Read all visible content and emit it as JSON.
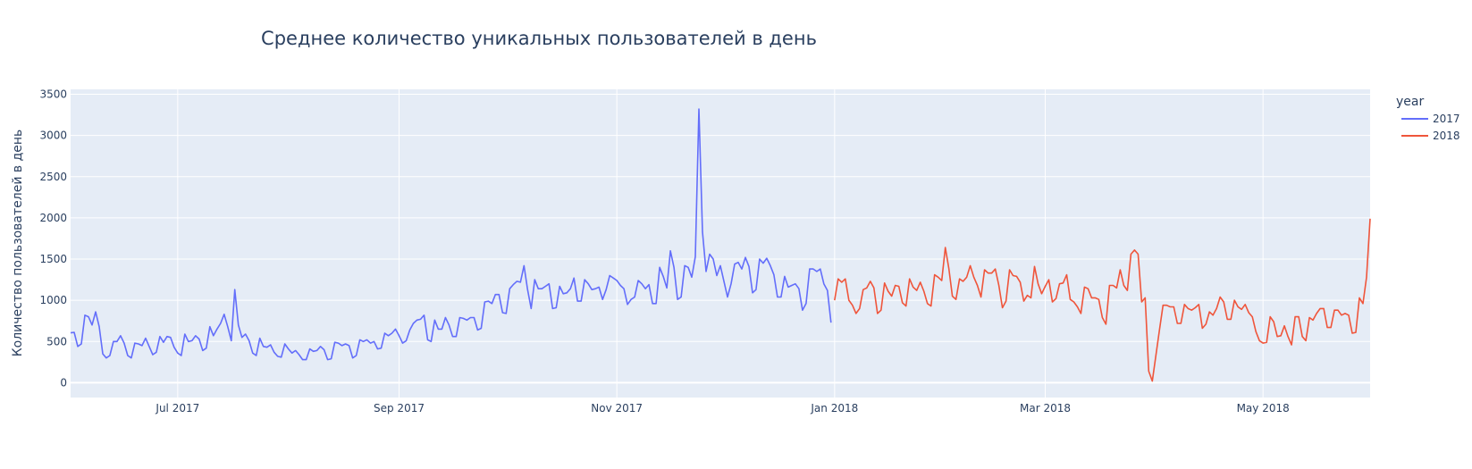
{
  "chart_data": {
    "type": "line",
    "title": "Среднее количество уникальных пользователей в день",
    "xlabel": "",
    "ylabel": "Количество пользователей в день",
    "ylim": [
      -180,
      3560
    ],
    "xlim": [
      "2017-06-01",
      "2018-05-31"
    ],
    "y_ticks": [
      0,
      500,
      1000,
      1500,
      2000,
      2500,
      3000,
      3500
    ],
    "x_ticks": [
      {
        "date": "2017-07-01",
        "label": "Jul 2017"
      },
      {
        "date": "2017-09-01",
        "label": "Sep 2017"
      },
      {
        "date": "2017-11-01",
        "label": "Nov 2017"
      },
      {
        "date": "2018-01-01",
        "label": "Jan 2018"
      },
      {
        "date": "2018-03-01",
        "label": "Mar 2018"
      },
      {
        "date": "2018-05-01",
        "label": "May 2018"
      }
    ],
    "grid": true,
    "legend": {
      "title": "year",
      "placement": "right"
    },
    "series": [
      {
        "name": "2017",
        "color": "#636efa",
        "start": "2017-06-01",
        "values": [
          605,
          610,
          440,
          470,
          820,
          800,
          700,
          860,
          680,
          350,
          300,
          330,
          500,
          500,
          570,
          480,
          330,
          300,
          480,
          470,
          450,
          540,
          440,
          340,
          370,
          560,
          490,
          560,
          550,
          430,
          360,
          330,
          590,
          500,
          510,
          570,
          530,
          390,
          420,
          680,
          570,
          650,
          720,
          830,
          680,
          510,
          1130,
          700,
          550,
          590,
          510,
          360,
          330,
          540,
          440,
          430,
          460,
          370,
          320,
          310,
          470,
          410,
          360,
          390,
          340,
          280,
          280,
          410,
          380,
          390,
          440,
          400,
          280,
          290,
          490,
          480,
          450,
          470,
          450,
          300,
          330,
          520,
          500,
          520,
          480,
          500,
          410,
          420,
          600,
          570,
          600,
          650,
          570,
          480,
          510,
          640,
          720,
          760,
          770,
          820,
          520,
          500,
          760,
          650,
          650,
          790,
          700,
          560,
          560,
          790,
          780,
          760,
          790,
          790,
          640,
          660,
          980,
          990,
          960,
          1070,
          1070,
          850,
          840,
          1140,
          1190,
          1230,
          1220,
          1420,
          1130,
          900,
          1250,
          1140,
          1140,
          1170,
          1200,
          900,
          910,
          1170,
          1080,
          1090,
          1140,
          1270,
          990,
          990,
          1250,
          1200,
          1130,
          1140,
          1160,
          1010,
          1130,
          1300,
          1270,
          1240,
          1180,
          1140,
          950,
          1010,
          1040,
          1240,
          1200,
          1140,
          1190,
          960,
          960,
          1400,
          1290,
          1150,
          1600,
          1400,
          1010,
          1040,
          1420,
          1400,
          1280,
          1530,
          3320,
          1830,
          1350,
          1560,
          1500,
          1300,
          1420,
          1230,
          1040,
          1200,
          1440,
          1460,
          1380,
          1520,
          1410,
          1090,
          1130,
          1500,
          1450,
          1510,
          1420,
          1310,
          1040,
          1040,
          1290,
          1160,
          1180,
          1200,
          1140,
          880,
          960,
          1380,
          1380,
          1350,
          1380,
          1200,
          1120,
          730
        ]
      },
      {
        "name": "2018",
        "color": "#ef553b",
        "start": "2018-01-01",
        "values": [
          1000,
          1260,
          1220,
          1260,
          1000,
          940,
          840,
          900,
          1130,
          1150,
          1230,
          1150,
          840,
          880,
          1210,
          1110,
          1050,
          1180,
          1170,
          970,
          930,
          1260,
          1160,
          1120,
          1220,
          1110,
          960,
          930,
          1310,
          1280,
          1240,
          1640,
          1390,
          1050,
          1010,
          1260,
          1230,
          1280,
          1420,
          1280,
          1180,
          1040,
          1370,
          1330,
          1330,
          1380,
          1180,
          910,
          990,
          1370,
          1300,
          1290,
          1220,
          990,
          1060,
          1030,
          1410,
          1200,
          1080,
          1170,
          1250,
          980,
          1020,
          1200,
          1210,
          1310,
          1010,
          980,
          920,
          840,
          1160,
          1140,
          1030,
          1030,
          1010,
          790,
          710,
          1180,
          1180,
          1150,
          1370,
          1180,
          1120,
          1560,
          1610,
          1560,
          980,
          1030,
          140,
          20,
          330,
          640,
          940,
          940,
          920,
          920,
          720,
          720,
          950,
          900,
          880,
          910,
          950,
          660,
          710,
          860,
          820,
          900,
          1040,
          980,
          770,
          770,
          1000,
          920,
          890,
          950,
          850,
          800,
          620,
          510,
          480,
          490,
          800,
          740,
          560,
          570,
          690,
          560,
          460,
          800,
          800,
          560,
          510,
          790,
          760,
          840,
          900,
          900,
          670,
          670,
          880,
          880,
          820,
          840,
          820,
          600,
          610,
          1030,
          960,
          1280,
          1990
        ]
      }
    ]
  }
}
